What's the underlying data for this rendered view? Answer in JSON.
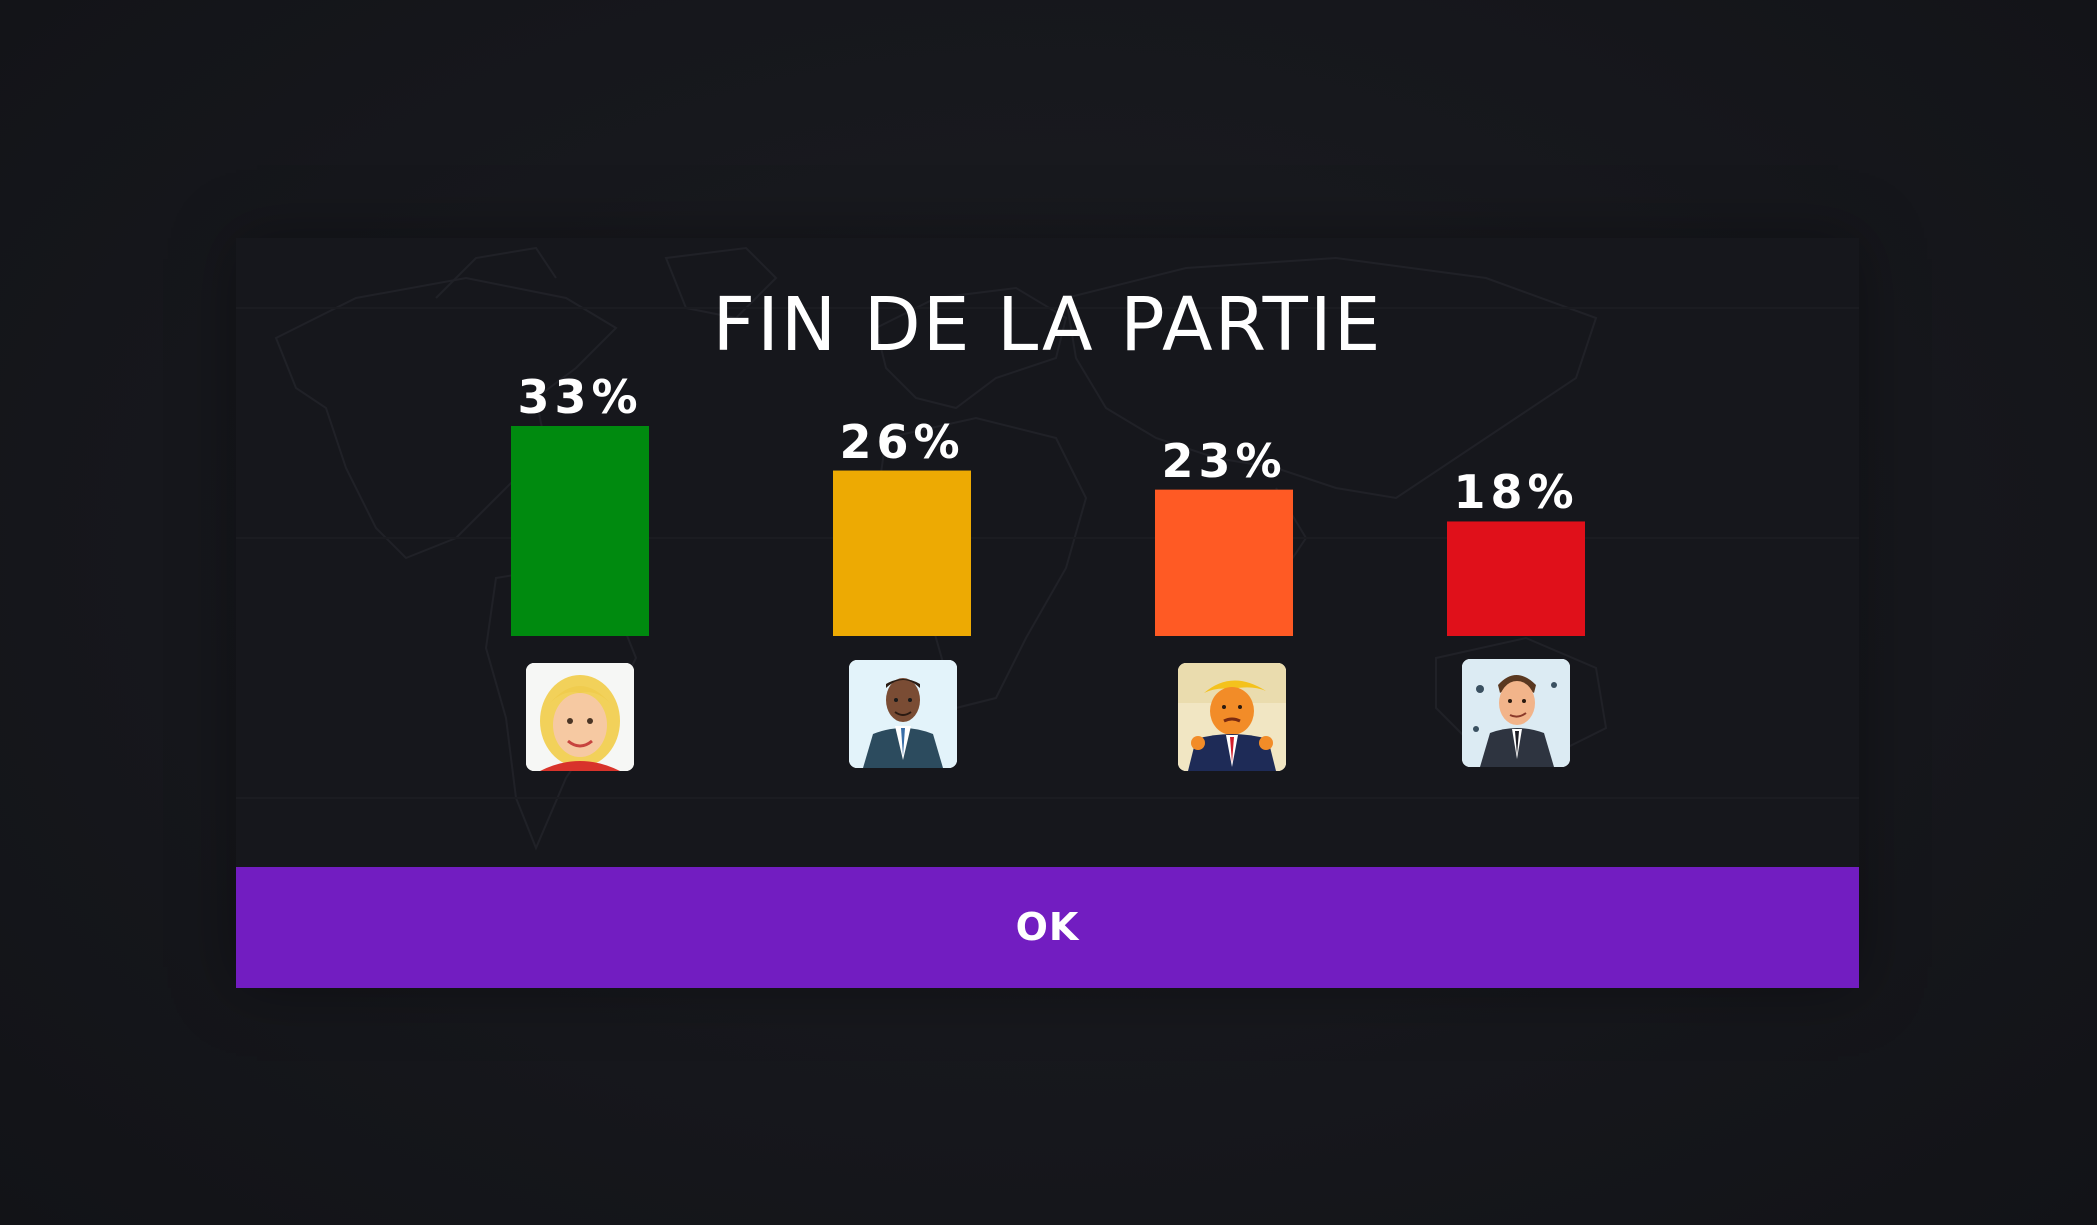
{
  "dialog": {
    "title": "FIN DE LA PARTIE",
    "ok_label": "OK"
  },
  "colors": {
    "accent": "#721dc1",
    "background": "#16171c"
  },
  "chart_data": {
    "type": "bar",
    "title": "FIN DE LA PARTIE",
    "categories": [
      "Hillary Clinton portrait",
      "Barack Obama portrait",
      "Donald Trump portrait",
      "Emmanuel Macron portrait"
    ],
    "values": [
      33,
      26,
      23,
      18
    ],
    "labels": [
      "33%",
      "26%",
      "23%",
      "18%"
    ],
    "colors": [
      "#008a0f",
      "#edaa03",
      "#ff5a24",
      "#e0101a"
    ],
    "ylim": [
      0,
      33
    ],
    "grid": false,
    "legend": "none"
  },
  "players": [
    {
      "avatar_icon": "clinton-caricature-icon"
    },
    {
      "avatar_icon": "obama-caricature-icon"
    },
    {
      "avatar_icon": "trump-caricature-icon"
    },
    {
      "avatar_icon": "macron-caricature-icon"
    }
  ]
}
